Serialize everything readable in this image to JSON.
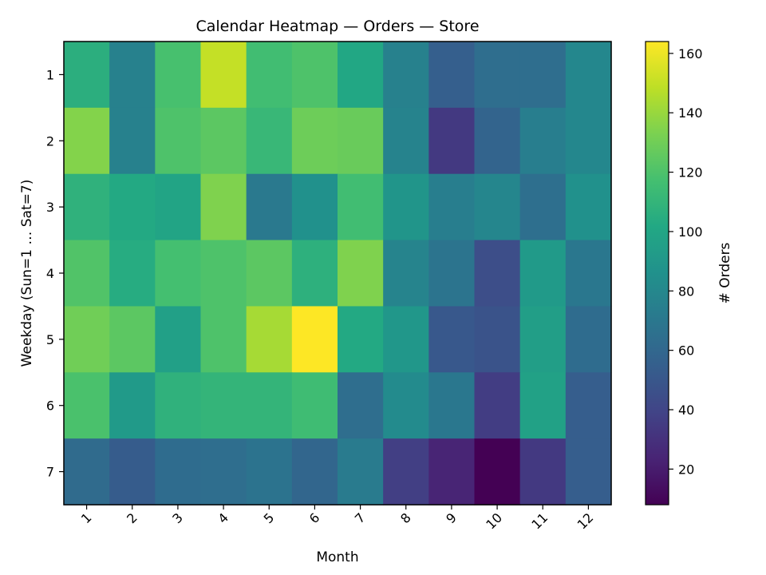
{
  "chart_data": {
    "type": "heatmap",
    "title": "Calendar Heatmap — Orders — Store",
    "xlabel": "Month",
    "ylabel": "Weekday (Sun=1 … Sat=7)",
    "colorbar_label": "# Orders",
    "x_categories": [
      "1",
      "2",
      "3",
      "4",
      "5",
      "6",
      "7",
      "8",
      "9",
      "10",
      "11",
      "12"
    ],
    "y_categories": [
      "1",
      "2",
      "3",
      "4",
      "5",
      "6",
      "7"
    ],
    "values": [
      [
        106,
        76,
        118,
        150,
        116,
        120,
        101,
        76,
        55,
        64,
        64,
        80
      ],
      [
        135,
        76,
        120,
        124,
        112,
        129,
        128,
        77,
        34,
        58,
        74,
        80
      ],
      [
        108,
        102,
        99,
        134,
        71,
        86,
        116,
        89,
        74,
        79,
        65,
        86
      ],
      [
        121,
        104,
        117,
        120,
        124,
        107,
        134,
        78,
        68,
        45,
        92,
        70
      ],
      [
        130,
        124,
        96,
        120,
        143,
        164,
        102,
        90,
        51,
        48,
        95,
        63
      ],
      [
        119,
        92,
        108,
        110,
        110,
        115,
        64,
        82,
        70,
        36,
        97,
        54
      ],
      [
        62,
        53,
        63,
        64,
        67,
        59,
        72,
        37,
        24,
        8,
        34,
        54
      ]
    ],
    "color_range": [
      8,
      164
    ],
    "colorbar_ticks": [
      "20",
      "40",
      "60",
      "80",
      "100",
      "120",
      "140",
      "160"
    ],
    "colormap": "viridis",
    "grid": false
  }
}
